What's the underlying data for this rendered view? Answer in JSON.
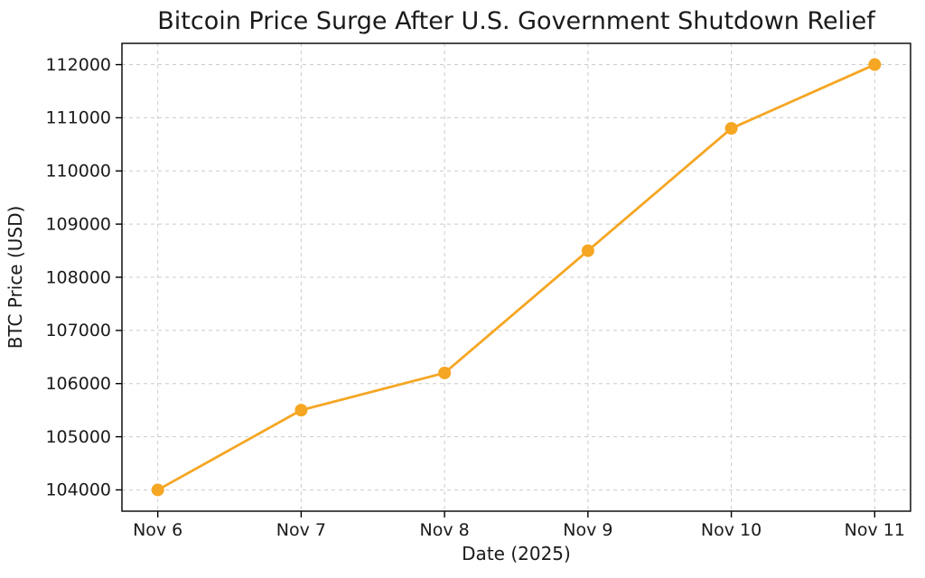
{
  "figure": {
    "title": "Bitcoin Price Surge After U.S. Government Shutdown Relief"
  },
  "chart_data": {
    "type": "line",
    "title": "Bitcoin Price Surge After U.S. Government Shutdown Relief",
    "xlabel": "Date (2025)",
    "ylabel": "BTC Price (USD)",
    "categories": [
      "Nov 6",
      "Nov 7",
      "Nov 8",
      "Nov 9",
      "Nov 10",
      "Nov 11"
    ],
    "values": [
      104000,
      105500,
      106200,
      108500,
      110800,
      112000
    ],
    "yticks": [
      104000,
      105000,
      106000,
      107000,
      108000,
      109000,
      110000,
      111000,
      112000
    ],
    "ylim": [
      103600,
      112400
    ],
    "x_margin": 0.25,
    "grid": true,
    "grid_style": "dashed",
    "grid_color": "#cccccc",
    "line_color": "#F5A623",
    "marker": "circle",
    "marker_color": "#F5A623",
    "spine_color": "#000000",
    "background": "#ffffff",
    "legend": "none"
  }
}
